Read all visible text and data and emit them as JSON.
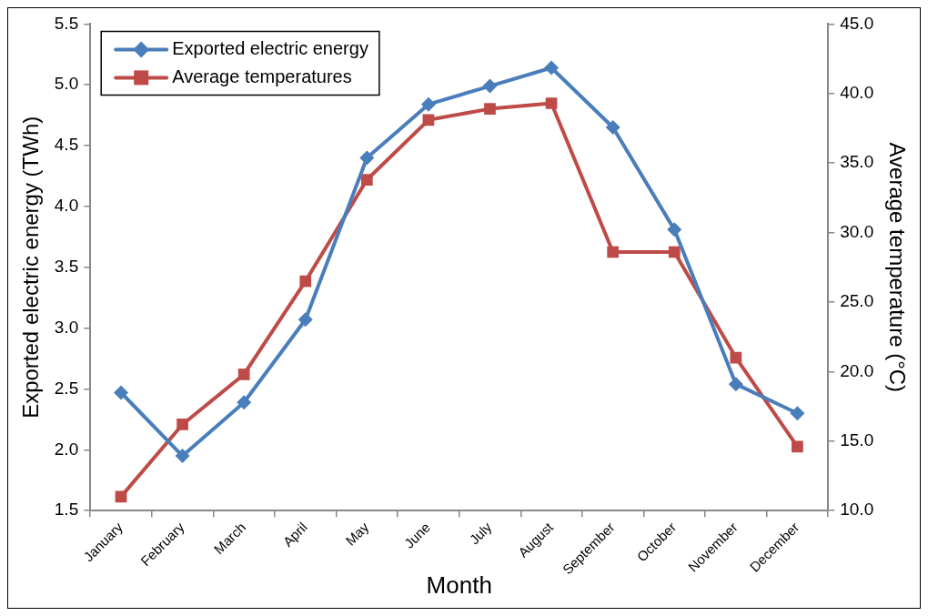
{
  "chart_data": {
    "type": "line",
    "xlabel": "Month",
    "ylabel": "Exported electric energy (TWh)",
    "y2label": "Average temperature (°C)",
    "categories": [
      "January",
      "February",
      "March",
      "April",
      "May",
      "June",
      "July",
      "August",
      "September",
      "October",
      "November",
      "December"
    ],
    "series": [
      {
        "name": "Exported electric energy",
        "color": "#4a7ebb",
        "marker": "diamond",
        "values": [
          2.47,
          1.95,
          2.39,
          3.07,
          4.4,
          4.84,
          4.99,
          5.14,
          4.65,
          3.81,
          2.54,
          2.3
        ]
      },
      {
        "name": "Average temperatures",
        "color": "#be4b48",
        "marker": "square",
        "axis": "y2",
        "values": [
          11.0,
          16.2,
          19.8,
          26.5,
          33.8,
          38.1,
          38.9,
          39.3,
          28.6,
          28.6,
          21.0,
          14.6
        ]
      }
    ],
    "ylim": [
      1.5,
      5.5
    ],
    "yticks": [
      {
        "value": 1.5,
        "label": "1.5"
      },
      {
        "value": 2,
        "label": "2.0"
      },
      {
        "value": 2.5,
        "label": "2.5"
      },
      {
        "value": 3,
        "label": "3.0"
      },
      {
        "value": 3.5,
        "label": "3.5"
      },
      {
        "value": 4,
        "label": "4.0"
      },
      {
        "value": 4.5,
        "label": "4.5"
      },
      {
        "value": 5,
        "label": "5.0"
      },
      {
        "value": 5.5,
        "label": "5.5"
      }
    ],
    "y2lim": [
      10,
      45
    ],
    "y2ticks": [
      {
        "value": 10,
        "label": "10.0"
      },
      {
        "value": 15,
        "label": "15.0"
      },
      {
        "value": 20,
        "label": "20.0"
      },
      {
        "value": 25,
        "label": "25.0"
      },
      {
        "value": 30,
        "label": "30.0"
      },
      {
        "value": 35,
        "label": "35.0"
      },
      {
        "value": 40,
        "label": "40.0"
      },
      {
        "value": 45,
        "label": "45.0"
      }
    ],
    "grid": false,
    "legend": "top left",
    "line_style": "solid"
  }
}
